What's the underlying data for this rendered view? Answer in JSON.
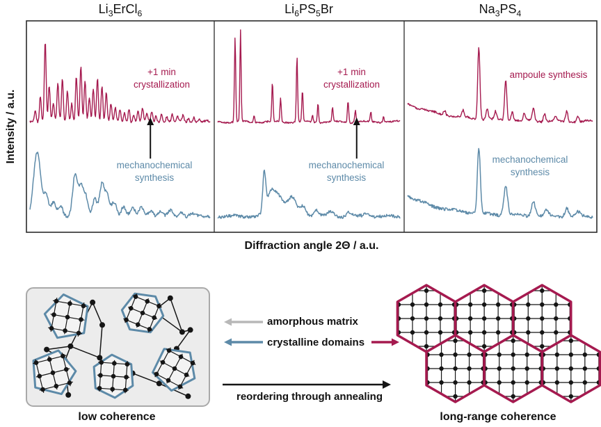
{
  "figure": {
    "y_axis_label": "Intensity / a.u.",
    "x_axis_label": "Diffraction angle 2Θ / a.u."
  },
  "colors": {
    "crimson": "#a51a4f",
    "blue": "#5d8aa8",
    "gray_arrow": "#b8b8b8",
    "ink": "#151515"
  },
  "chart_data": {
    "type": "line",
    "xlabel": "Diffraction angle 2Θ / a.u.",
    "ylabel": "Intensity / a.u.",
    "axes_note": "arbitrary units, no tick labels shown",
    "panels": [
      {
        "title": "Li_3ErCl_6",
        "top_label": "+1 min crystallization",
        "bottom_label": "mechanochemical synthesis",
        "arrow_x": 0.66,
        "series": [
          {
            "name": "+1 min crystallization",
            "color": "crimson",
            "default_width": 0.005,
            "noise": 1.5,
            "peaks": [
              [
                0.03,
                16
              ],
              [
                0.058,
                38
              ],
              [
                0.085,
                118
              ],
              [
                0.107,
                52
              ],
              [
                0.13,
                26
              ],
              [
                0.155,
                56
              ],
              [
                0.18,
                62
              ],
              [
                0.208,
                46
              ],
              [
                0.232,
                28
              ],
              [
                0.258,
                66
              ],
              [
                0.283,
                80
              ],
              [
                0.306,
                58
              ],
              [
                0.33,
                34
              ],
              [
                0.352,
                48
              ],
              [
                0.375,
                64
              ],
              [
                0.4,
                52
              ],
              [
                0.424,
                44
              ],
              [
                0.45,
                26
              ],
              [
                0.474,
                20
              ],
              [
                0.5,
                17
              ],
              [
                0.525,
                13
              ],
              [
                0.55,
                19
              ],
              [
                0.576,
                11
              ],
              [
                0.6,
                15
              ],
              [
                0.625,
                19
              ],
              [
                0.65,
                11
              ],
              [
                0.676,
                14
              ],
              [
                0.7,
                9
              ],
              [
                0.73,
                13
              ],
              [
                0.76,
                8
              ],
              [
                0.79,
                11
              ],
              [
                0.82,
                7
              ],
              [
                0.85,
                9
              ],
              [
                0.88,
                6
              ],
              [
                0.91,
                8
              ],
              [
                0.94,
                5
              ]
            ]
          },
          {
            "name": "mechanochemical synthesis",
            "color": "blue",
            "default_width": 0.013,
            "noise": 2.2,
            "peaks": [
              [
                0.04,
                92,
                0.02
              ],
              [
                0.09,
                28
              ],
              [
                0.13,
                20
              ],
              [
                0.17,
                16
              ],
              [
                0.25,
                58
              ],
              [
                0.283,
                42
              ],
              [
                0.31,
                28
              ],
              [
                0.36,
                26
              ],
              [
                0.4,
                46
              ],
              [
                0.43,
                28
              ],
              [
                0.468,
                20
              ],
              [
                0.52,
                15
              ],
              [
                0.57,
                11
              ],
              [
                0.62,
                13
              ],
              [
                0.67,
                9
              ],
              [
                0.72,
                7
              ],
              [
                0.78,
                8
              ],
              [
                0.84,
                6
              ],
              [
                0.9,
                5
              ]
            ]
          }
        ]
      },
      {
        "title": "Li_6PS_5Br",
        "top_label": "+1 min crystallization",
        "bottom_label": "mechanochemical synthesis",
        "arrow_x": 0.75,
        "series": [
          {
            "name": "+1 min crystallization",
            "color": "crimson",
            "default_width": 0.0035,
            "noise": 1.2,
            "peaks": [
              [
                0.095,
                122
              ],
              [
                0.125,
                130
              ],
              [
                0.2,
                10
              ],
              [
                0.3,
                56
              ],
              [
                0.345,
                34
              ],
              [
                0.435,
                94
              ],
              [
                0.465,
                44
              ],
              [
                0.52,
                9
              ],
              [
                0.55,
                27
              ],
              [
                0.63,
                21
              ],
              [
                0.715,
                32
              ],
              [
                0.755,
                17
              ],
              [
                0.84,
                13
              ],
              [
                0.91,
                9
              ]
            ]
          },
          {
            "name": "mechanochemical synthesis",
            "color": "blue",
            "default_width": 0.015,
            "noise": 2.2,
            "peaks": [
              [
                0.255,
                56,
                0.008
              ],
              [
                0.29,
                26,
                0.02
              ],
              [
                0.33,
                18,
                0.025
              ],
              [
                0.36,
                14,
                0.06
              ],
              [
                0.41,
                17,
                0.02
              ],
              [
                0.47,
                13
              ],
              [
                0.54,
                9
              ],
              [
                0.62,
                7
              ],
              [
                0.72,
                6
              ],
              [
                0.82,
                5
              ]
            ]
          }
        ]
      },
      {
        "title": "Na_3PS_4",
        "top_label": "ampoule synthesis",
        "bottom_label": "mechanochemical synthesis",
        "arrow_x": null,
        "series": [
          {
            "name": "ampoule synthesis",
            "color": "crimson",
            "default_width": 0.006,
            "noise": 1.5,
            "decay": [
              26,
              0.22
            ],
            "peaks": [
              [
                0.2,
                7
              ],
              [
                0.3,
                9
              ],
              [
                0.385,
                104
              ],
              [
                0.43,
                15
              ],
              [
                0.475,
                11
              ],
              [
                0.53,
                58
              ],
              [
                0.565,
                13
              ],
              [
                0.63,
                9
              ],
              [
                0.68,
                19
              ],
              [
                0.74,
                11
              ],
              [
                0.8,
                7
              ],
              [
                0.86,
                15
              ],
              [
                0.92,
                8
              ]
            ]
          },
          {
            "name": "mechanochemical synthesis",
            "color": "blue",
            "default_width": 0.01,
            "noise": 2.2,
            "decay": [
              30,
              0.2
            ],
            "peaks": [
              [
                0.385,
                94,
                0.008
              ],
              [
                0.53,
                42
              ],
              [
                0.68,
                22
              ],
              [
                0.75,
                8
              ],
              [
                0.86,
                12
              ],
              [
                0.92,
                6
              ]
            ]
          }
        ]
      }
    ]
  },
  "schematic": {
    "legend": [
      {
        "label": "amorphous matrix",
        "arrow_color": "gray"
      },
      {
        "label": "crystalline domains",
        "arrow_color": "blue"
      }
    ],
    "process_label": "reordering through annealing",
    "left_caption": "low coherence",
    "right_caption": "long-range coherence"
  }
}
